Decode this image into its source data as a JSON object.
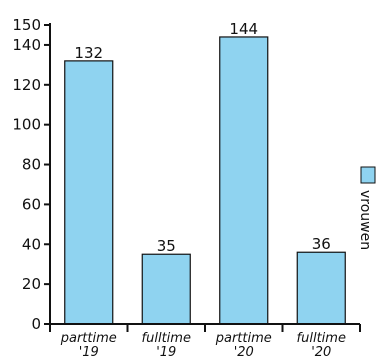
{
  "chart_data": {
    "type": "bar",
    "categories": [
      [
        "parttime",
        "'19"
      ],
      [
        "fulltime",
        "'19"
      ],
      [
        "parttime",
        "'20"
      ],
      [
        "fulltime",
        "'20"
      ]
    ],
    "series": [
      {
        "name": "vrouwen",
        "values": [
          132,
          35,
          144,
          36
        ]
      }
    ],
    "value_labels": [
      "132",
      "35",
      "144",
      "36"
    ],
    "yticks": [
      "0",
      "20",
      "40",
      "60",
      "80",
      "100",
      "120",
      "140",
      "150"
    ],
    "ytick_values": [
      0,
      20,
      40,
      60,
      80,
      100,
      120,
      140,
      150
    ],
    "ylim": [
      0,
      150
    ],
    "bar_color": "#8fd3f0",
    "bar_border": "#111111",
    "legend": "right-vertical",
    "grid": false
  }
}
